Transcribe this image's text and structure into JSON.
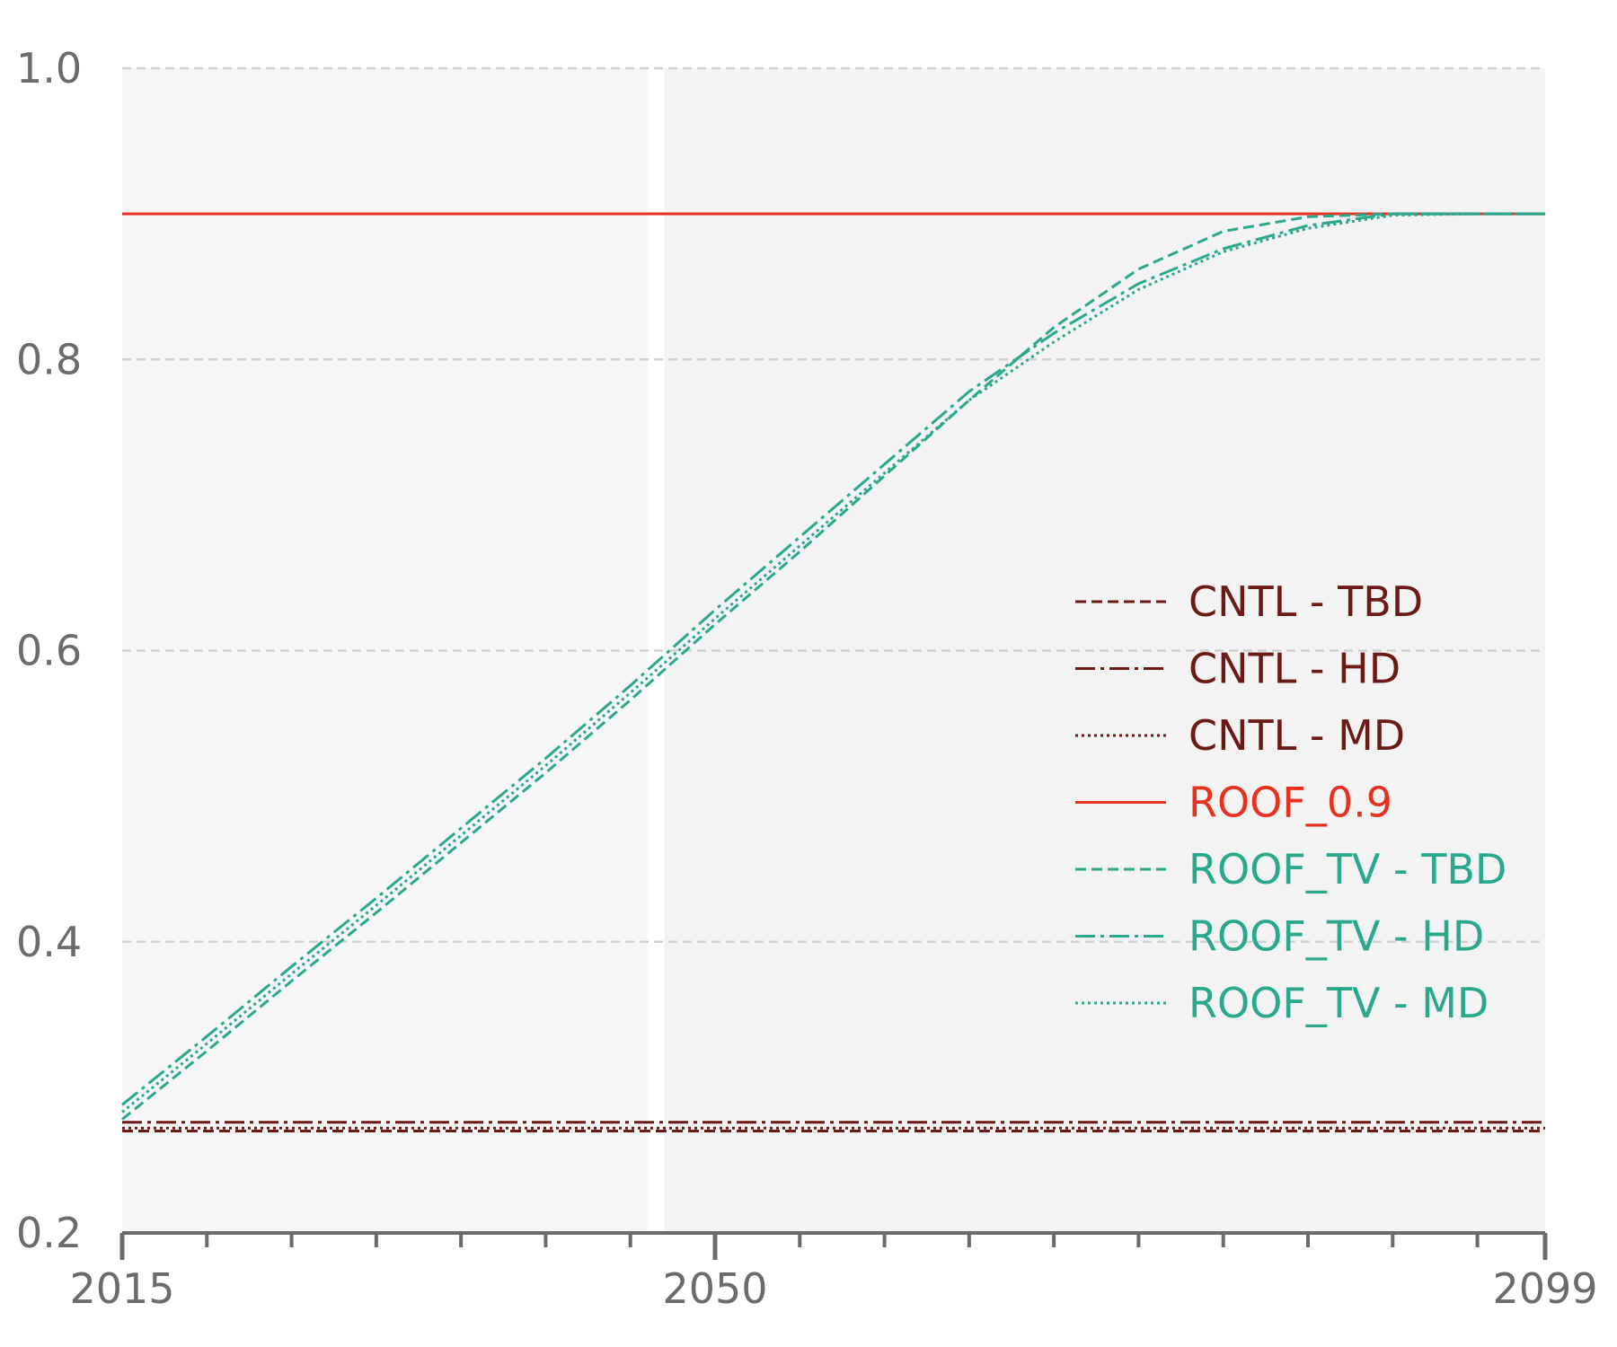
{
  "chart_data": {
    "type": "line",
    "title": "",
    "xlabel": "",
    "ylabel": "",
    "xlim": [
      2015,
      2099
    ],
    "ylim": [
      0.2,
      1.0
    ],
    "x_ticks": [
      2015,
      2050,
      2099
    ],
    "x_tick_labels": [
      "2015",
      "2050",
      "2099"
    ],
    "x_minor_step": 5,
    "y_ticks": [
      0.2,
      0.4,
      0.6,
      0.8,
      1.0
    ],
    "y_tick_labels": [
      "0.2",
      "0.4",
      "0.6",
      "0.8",
      "1.0"
    ],
    "grid": {
      "y": true,
      "style": "dashed"
    },
    "shaded_periods": [
      {
        "x": [
          2015,
          2046
        ],
        "color": "#f6f6f6"
      },
      {
        "x": [
          2047,
          2099
        ],
        "color": "#f3f3f3"
      }
    ],
    "legend_position": "right",
    "series": [
      {
        "name": "CNTL - TBD",
        "color": "#6b1a15",
        "dash": "dashed",
        "x": [
          2015,
          2099
        ],
        "y": [
          0.27,
          0.27
        ]
      },
      {
        "name": "CNTL - HD",
        "color": "#6b1a15",
        "dash": "dashdot",
        "x": [
          2015,
          2099
        ],
        "y": [
          0.276,
          0.276
        ]
      },
      {
        "name": "CNTL - MD",
        "color": "#6b1a15",
        "dash": "dotted",
        "x": [
          2015,
          2099
        ],
        "y": [
          0.272,
          0.272
        ]
      },
      {
        "name": "ROOF_0.9",
        "color": "#e8301f",
        "dash": "solid",
        "x": [
          2015,
          2099
        ],
        "y": [
          0.9,
          0.9
        ]
      },
      {
        "name": "ROOF_TV - TBD",
        "color": "#2aa88c",
        "dash": "dashed",
        "x": [
          2015,
          2020,
          2025,
          2030,
          2035,
          2040,
          2045,
          2050,
          2055,
          2060,
          2065,
          2070,
          2075,
          2080,
          2085,
          2090,
          2095,
          2099
        ],
        "y": [
          0.278,
          0.325,
          0.373,
          0.42,
          0.468,
          0.516,
          0.566,
          0.618,
          0.668,
          0.72,
          0.772,
          0.822,
          0.862,
          0.888,
          0.898,
          0.9,
          0.9,
          0.9
        ]
      },
      {
        "name": "ROOF_TV - HD",
        "color": "#2aa88c",
        "dash": "dashdot",
        "x": [
          2015,
          2020,
          2025,
          2030,
          2035,
          2040,
          2045,
          2050,
          2055,
          2060,
          2065,
          2070,
          2075,
          2080,
          2085,
          2090,
          2095,
          2099
        ],
        "y": [
          0.288,
          0.335,
          0.383,
          0.43,
          0.478,
          0.526,
          0.576,
          0.628,
          0.678,
          0.728,
          0.778,
          0.818,
          0.852,
          0.876,
          0.892,
          0.9,
          0.9,
          0.9
        ]
      },
      {
        "name": "ROOF_TV - MD",
        "color": "#2aa88c",
        "dash": "dotted",
        "x": [
          2015,
          2020,
          2025,
          2030,
          2035,
          2040,
          2045,
          2050,
          2055,
          2060,
          2065,
          2070,
          2075,
          2080,
          2085,
          2090,
          2095,
          2099
        ],
        "y": [
          0.283,
          0.33,
          0.378,
          0.425,
          0.473,
          0.521,
          0.571,
          0.622,
          0.672,
          0.722,
          0.772,
          0.812,
          0.848,
          0.874,
          0.89,
          0.899,
          0.9,
          0.9
        ]
      }
    ]
  }
}
